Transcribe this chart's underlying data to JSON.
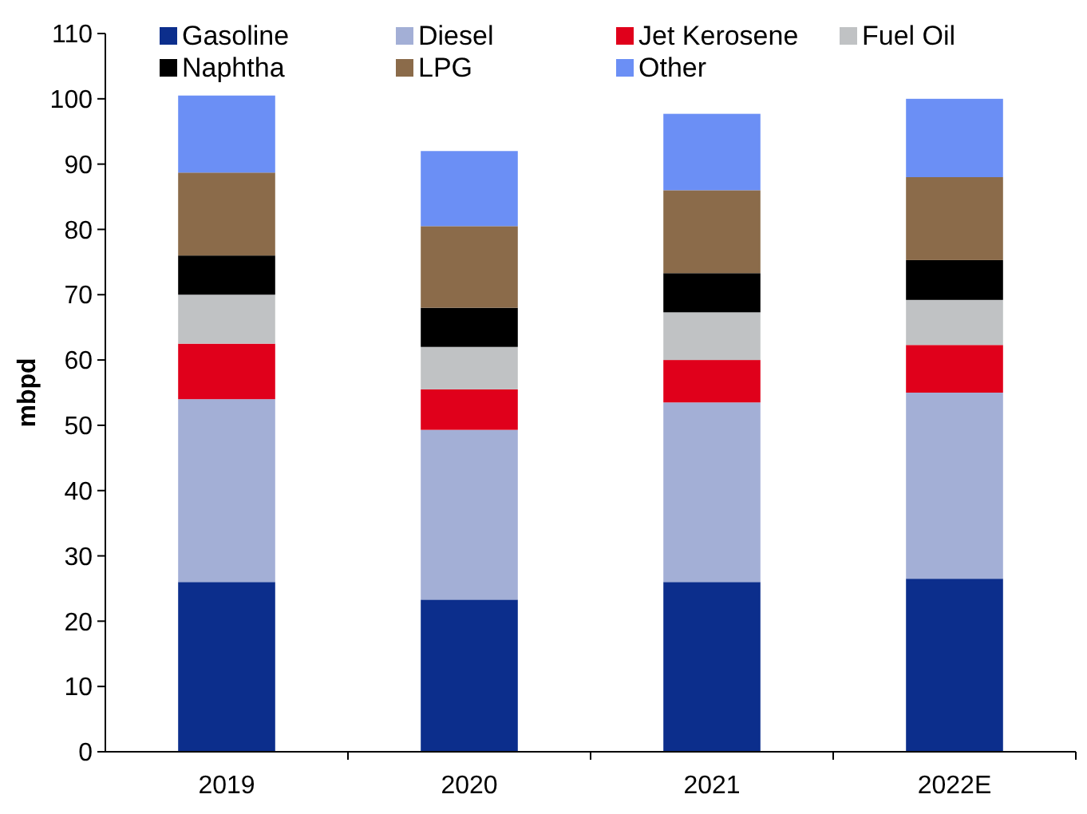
{
  "chart_data": {
    "type": "bar",
    "stacked": true,
    "ylabel": "mbpd",
    "categories": [
      "2019",
      "2020",
      "2021",
      "2022E"
    ],
    "ylim": [
      0,
      110
    ],
    "yticks": [
      0,
      10,
      20,
      30,
      40,
      50,
      60,
      70,
      80,
      90,
      100,
      110
    ],
    "grid": false,
    "legend": "top",
    "series": [
      {
        "name": "Gasoline",
        "color": "#0c2e8c",
        "values": [
          26,
          23.3,
          26,
          26.5
        ]
      },
      {
        "name": "Diesel",
        "color": "#a3afd6",
        "values": [
          28,
          26,
          27.5,
          28.5
        ]
      },
      {
        "name": "Jet Kerosene",
        "color": "#e0001b",
        "values": [
          8.5,
          6.2,
          6.5,
          7.3
        ]
      },
      {
        "name": "Fuel Oil",
        "color": "#c0c2c4",
        "values": [
          7.5,
          6.5,
          7.3,
          6.9
        ]
      },
      {
        "name": "Naphtha",
        "color": "#000000",
        "values": [
          6,
          6,
          6,
          6.1
        ]
      },
      {
        "name": "LPG",
        "color": "#8b6b4a",
        "values": [
          12.7,
          12.5,
          12.7,
          12.7
        ]
      },
      {
        "name": "Other",
        "color": "#6b8ff5",
        "values": [
          11.8,
          11.5,
          11.7,
          12
        ]
      }
    ]
  }
}
